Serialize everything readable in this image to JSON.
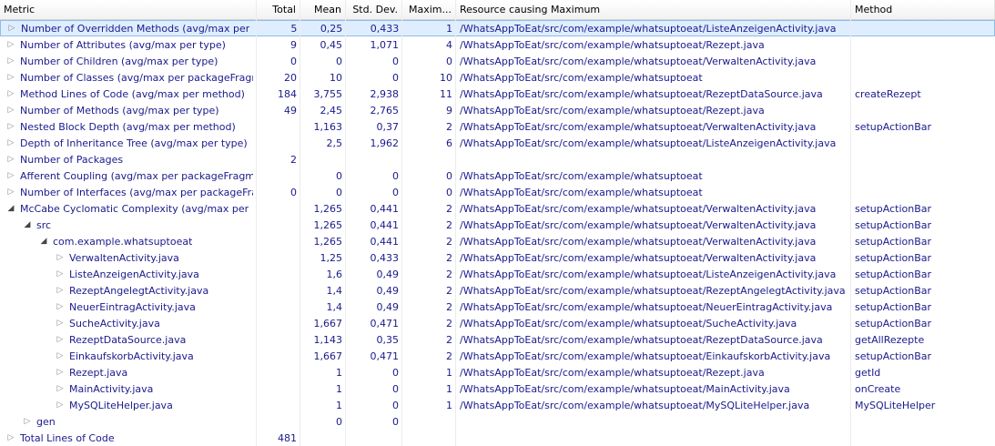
{
  "columns": [
    "Metric",
    "Total",
    "Mean",
    "Std. Dev.",
    "Maxim...",
    "Resource causing Maximum",
    "Method"
  ],
  "rows": [
    {
      "indent": 0,
      "twisty": "closed",
      "label": "Number of Overridden Methods (avg/max per",
      "total": "5",
      "mean": "0,25",
      "std": "0,433",
      "max": "1",
      "resource": "/WhatsAppToEat/src/com/example/whatsuptoeat/ListeAnzeigenActivity.java",
      "method": "",
      "selected": true
    },
    {
      "indent": 0,
      "twisty": "closed",
      "label": "Number of Attributes (avg/max per type)",
      "total": "9",
      "mean": "0,45",
      "std": "1,071",
      "max": "4",
      "resource": "/WhatsAppToEat/src/com/example/whatsuptoeat/Rezept.java",
      "method": ""
    },
    {
      "indent": 0,
      "twisty": "closed",
      "label": "Number of Children (avg/max per type)",
      "total": "0",
      "mean": "0",
      "std": "0",
      "max": "0",
      "resource": "/WhatsAppToEat/src/com/example/whatsuptoeat/VerwaltenActivity.java",
      "method": ""
    },
    {
      "indent": 0,
      "twisty": "closed",
      "label": "Number of Classes (avg/max per packageFragr",
      "total": "20",
      "mean": "10",
      "std": "0",
      "max": "10",
      "resource": "/WhatsAppToEat/src/com/example/whatsuptoeat",
      "method": ""
    },
    {
      "indent": 0,
      "twisty": "closed",
      "label": "Method Lines of Code (avg/max per method)",
      "total": "184",
      "mean": "3,755",
      "std": "2,938",
      "max": "11",
      "resource": "/WhatsAppToEat/src/com/example/whatsuptoeat/RezeptDataSource.java",
      "method": "createRezept"
    },
    {
      "indent": 0,
      "twisty": "closed",
      "label": "Number of Methods (avg/max per type)",
      "total": "49",
      "mean": "2,45",
      "std": "2,765",
      "max": "9",
      "resource": "/WhatsAppToEat/src/com/example/whatsuptoeat/Rezept.java",
      "method": ""
    },
    {
      "indent": 0,
      "twisty": "closed",
      "label": "Nested Block Depth (avg/max per method)",
      "total": "",
      "mean": "1,163",
      "std": "0,37",
      "max": "2",
      "resource": "/WhatsAppToEat/src/com/example/whatsuptoeat/VerwaltenActivity.java",
      "method": "setupActionBar"
    },
    {
      "indent": 0,
      "twisty": "closed",
      "label": "Depth of Inheritance Tree (avg/max per type)",
      "total": "",
      "mean": "2,5",
      "std": "1,962",
      "max": "6",
      "resource": "/WhatsAppToEat/src/com/example/whatsuptoeat/ListeAnzeigenActivity.java",
      "method": ""
    },
    {
      "indent": 0,
      "twisty": "closed",
      "label": "Number of Packages",
      "total": "2",
      "mean": "",
      "std": "",
      "max": "",
      "resource": "",
      "method": ""
    },
    {
      "indent": 0,
      "twisty": "closed",
      "label": "Afferent Coupling (avg/max per packageFragm",
      "total": "",
      "mean": "0",
      "std": "0",
      "max": "0",
      "resource": "/WhatsAppToEat/src/com/example/whatsuptoeat",
      "method": ""
    },
    {
      "indent": 0,
      "twisty": "closed",
      "label": "Number of Interfaces (avg/max per packageFra",
      "total": "0",
      "mean": "0",
      "std": "0",
      "max": "0",
      "resource": "/WhatsAppToEat/src/com/example/whatsuptoeat",
      "method": ""
    },
    {
      "indent": 0,
      "twisty": "open",
      "label": "McCabe Cyclomatic Complexity (avg/max per",
      "total": "",
      "mean": "1,265",
      "std": "0,441",
      "max": "2",
      "resource": "/WhatsAppToEat/src/com/example/whatsuptoeat/VerwaltenActivity.java",
      "method": "setupActionBar"
    },
    {
      "indent": 1,
      "twisty": "open",
      "label": "src",
      "total": "",
      "mean": "1,265",
      "std": "0,441",
      "max": "2",
      "resource": "/WhatsAppToEat/src/com/example/whatsuptoeat/VerwaltenActivity.java",
      "method": "setupActionBar"
    },
    {
      "indent": 2,
      "twisty": "open",
      "label": "com.example.whatsuptoeat",
      "total": "",
      "mean": "1,265",
      "std": "0,441",
      "max": "2",
      "resource": "/WhatsAppToEat/src/com/example/whatsuptoeat/VerwaltenActivity.java",
      "method": "setupActionBar"
    },
    {
      "indent": 3,
      "twisty": "closed",
      "label": "VerwaltenActivity.java",
      "total": "",
      "mean": "1,25",
      "std": "0,433",
      "max": "2",
      "resource": "/WhatsAppToEat/src/com/example/whatsuptoeat/VerwaltenActivity.java",
      "method": "setupActionBar"
    },
    {
      "indent": 3,
      "twisty": "closed",
      "label": "ListeAnzeigenActivity.java",
      "total": "",
      "mean": "1,6",
      "std": "0,49",
      "max": "2",
      "resource": "/WhatsAppToEat/src/com/example/whatsuptoeat/ListeAnzeigenActivity.java",
      "method": "setupActionBar"
    },
    {
      "indent": 3,
      "twisty": "closed",
      "label": "RezeptAngelegtActivity.java",
      "total": "",
      "mean": "1,4",
      "std": "0,49",
      "max": "2",
      "resource": "/WhatsAppToEat/src/com/example/whatsuptoeat/RezeptAngelegtActivity.java",
      "method": "setupActionBar"
    },
    {
      "indent": 3,
      "twisty": "closed",
      "label": "NeuerEintragActivity.java",
      "total": "",
      "mean": "1,4",
      "std": "0,49",
      "max": "2",
      "resource": "/WhatsAppToEat/src/com/example/whatsuptoeat/NeuerEintragActivity.java",
      "method": "setupActionBar"
    },
    {
      "indent": 3,
      "twisty": "closed",
      "label": "SucheActivity.java",
      "total": "",
      "mean": "1,667",
      "std": "0,471",
      "max": "2",
      "resource": "/WhatsAppToEat/src/com/example/whatsuptoeat/SucheActivity.java",
      "method": "setupActionBar"
    },
    {
      "indent": 3,
      "twisty": "closed",
      "label": "RezeptDataSource.java",
      "total": "",
      "mean": "1,143",
      "std": "0,35",
      "max": "2",
      "resource": "/WhatsAppToEat/src/com/example/whatsuptoeat/RezeptDataSource.java",
      "method": "getAllRezepte"
    },
    {
      "indent": 3,
      "twisty": "closed",
      "label": "EinkaufskorbActivity.java",
      "total": "",
      "mean": "1,667",
      "std": "0,471",
      "max": "2",
      "resource": "/WhatsAppToEat/src/com/example/whatsuptoeat/EinkaufskorbActivity.java",
      "method": "setupActionBar"
    },
    {
      "indent": 3,
      "twisty": "closed",
      "label": "Rezept.java",
      "total": "",
      "mean": "1",
      "std": "0",
      "max": "1",
      "resource": "/WhatsAppToEat/src/com/example/whatsuptoeat/Rezept.java",
      "method": "getId"
    },
    {
      "indent": 3,
      "twisty": "closed",
      "label": "MainActivity.java",
      "total": "",
      "mean": "1",
      "std": "0",
      "max": "1",
      "resource": "/WhatsAppToEat/src/com/example/whatsuptoeat/MainActivity.java",
      "method": "onCreate"
    },
    {
      "indent": 3,
      "twisty": "closed",
      "label": "MySQLiteHelper.java",
      "total": "",
      "mean": "1",
      "std": "0",
      "max": "1",
      "resource": "/WhatsAppToEat/src/com/example/whatsuptoeat/MySQLiteHelper.java",
      "method": "MySQLiteHelper"
    },
    {
      "indent": 1,
      "twisty": "closed",
      "label": "gen",
      "total": "",
      "mean": "0",
      "std": "0",
      "max": "",
      "resource": "",
      "method": ""
    },
    {
      "indent": 0,
      "twisty": "closed",
      "label": "Total Lines of Code",
      "total": "481",
      "mean": "",
      "std": "",
      "max": "",
      "resource": "",
      "method": ""
    }
  ],
  "colors": {
    "text": "#1a1a8c",
    "selected_bg": "#dfeeff",
    "selected_border": "#8fbce8"
  },
  "icons": {
    "collapsed": "triangle-right-icon",
    "expanded": "triangle-down-icon"
  }
}
